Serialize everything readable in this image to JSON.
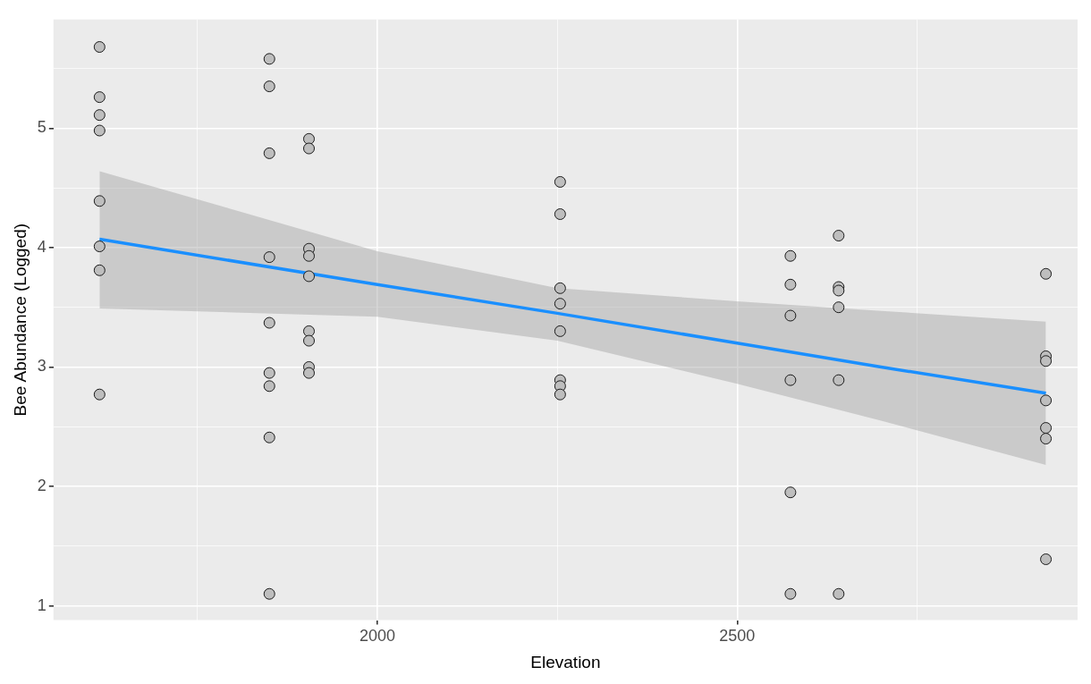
{
  "chart_data": {
    "type": "scatter",
    "xlabel": "Elevation",
    "ylabel": "Bee Abundance (Logged)",
    "xlim": [
      1550,
      2973
    ],
    "xticks": [
      {
        "value": 1750,
        "label": null
      },
      2000,
      {
        "value": 2250,
        "label": null
      },
      2500,
      {
        "value": 2750,
        "label": null
      }
    ],
    "ylim": [
      0.88,
      5.91
    ],
    "yticks": [
      1,
      {
        "value": 1.5,
        "label": null
      },
      2,
      {
        "value": 2.5,
        "label": null
      },
      3,
      {
        "value": 3.5,
        "label": null
      },
      4,
      {
        "value": 4.5,
        "label": null
      },
      5,
      {
        "value": 5.5,
        "label": null
      }
    ],
    "grid": true,
    "series": [
      {
        "marker": "circle",
        "color": "#bebebe",
        "x": [
          1614,
          1614,
          1614,
          1614,
          1614,
          1614,
          1614,
          1614,
          1850,
          1850,
          1850,
          1850,
          1850,
          1850,
          1850,
          1850,
          1850,
          1905,
          1905,
          1905,
          1905,
          1905,
          1905,
          1905,
          1905,
          1905,
          2254,
          2254,
          2254,
          2254,
          2254,
          2254,
          2254,
          2254,
          2574,
          2574,
          2574,
          2574,
          2574,
          2574,
          2641,
          2641,
          2641,
          2641,
          2641,
          2641,
          2929,
          2929,
          2929,
          2929,
          2929,
          2929,
          2929
        ],
        "values": [
          5.68,
          5.26,
          5.11,
          4.98,
          4.39,
          4.01,
          3.81,
          2.77,
          5.58,
          5.35,
          4.79,
          3.92,
          3.37,
          2.95,
          2.84,
          2.41,
          1.1,
          4.91,
          4.83,
          3.99,
          3.93,
          3.76,
          3.3,
          3.22,
          3.0,
          2.95,
          4.55,
          4.28,
          3.66,
          3.53,
          3.3,
          2.89,
          2.84,
          2.77,
          3.93,
          3.69,
          3.43,
          2.89,
          1.95,
          1.1,
          4.1,
          3.67,
          3.64,
          3.5,
          2.89,
          1.1,
          3.78,
          3.09,
          3.05,
          2.72,
          2.49,
          2.4,
          1.39
        ]
      },
      {
        "type": "line",
        "marker": "none",
        "color": "#1a8fff",
        "x": [
          1614,
          2000,
          2250,
          2500,
          2700,
          2929
        ],
        "values": [
          4.07,
          3.69,
          3.45,
          3.2,
          3.0,
          2.78
        ],
        "lower": [
          3.49,
          3.42,
          3.22,
          2.86,
          2.55,
          2.18
        ],
        "upper": [
          4.64,
          3.97,
          3.66,
          3.55,
          3.47,
          3.38
        ]
      }
    ]
  }
}
